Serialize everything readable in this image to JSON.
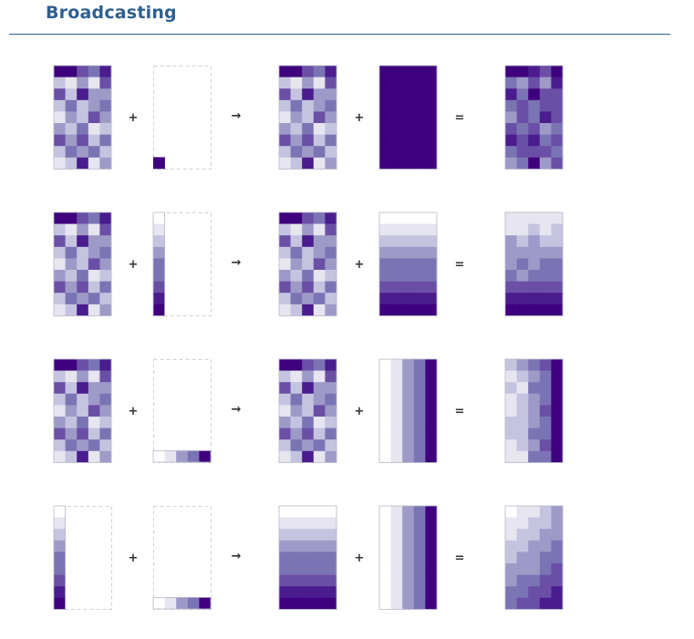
{
  "header": {
    "title": "Broadcasting"
  },
  "palette": [
    "#ffffff",
    "#e6e5f0",
    "#c5c4e0",
    "#9e9ac8",
    "#7b74b4",
    "#6a4fa6",
    "#4a1c8e",
    "#3f007d"
  ],
  "operators": {
    "plus": "+",
    "arrow": "→",
    "equals": "="
  },
  "rows": [
    {
      "a": {
        "shape": "matrix",
        "cells": [
          [
            7,
            7,
            5,
            4,
            6
          ],
          [
            2,
            1,
            3,
            1,
            5
          ],
          [
            5,
            2,
            6,
            3,
            3
          ],
          [
            2,
            4,
            2,
            3,
            4
          ],
          [
            1,
            3,
            2,
            5,
            3
          ],
          [
            3,
            2,
            4,
            1,
            2
          ],
          [
            5,
            3,
            5,
            2,
            4
          ],
          [
            2,
            4,
            3,
            4,
            2
          ],
          [
            1,
            2,
            6,
            1,
            3
          ]
        ]
      },
      "b": {
        "shape": "scalar",
        "cells": [
          [
            7
          ]
        ]
      },
      "ax": {
        "shape": "matrix",
        "cells": [
          [
            7,
            7,
            5,
            4,
            6
          ],
          [
            2,
            1,
            3,
            1,
            5
          ],
          [
            5,
            2,
            6,
            3,
            3
          ],
          [
            2,
            4,
            2,
            3,
            4
          ],
          [
            1,
            3,
            2,
            5,
            3
          ],
          [
            3,
            2,
            4,
            1,
            2
          ],
          [
            5,
            3,
            5,
            2,
            4
          ],
          [
            2,
            4,
            3,
            4,
            2
          ],
          [
            1,
            2,
            6,
            1,
            3
          ]
        ]
      },
      "bx": {
        "shape": "matrix",
        "cells": [
          [
            7,
            7,
            7,
            7,
            7
          ],
          [
            7,
            7,
            7,
            7,
            7
          ],
          [
            7,
            7,
            7,
            7,
            7
          ],
          [
            7,
            7,
            7,
            7,
            7
          ],
          [
            7,
            7,
            7,
            7,
            7
          ],
          [
            7,
            7,
            7,
            7,
            7
          ],
          [
            7,
            7,
            7,
            7,
            7
          ],
          [
            7,
            7,
            7,
            7,
            7
          ],
          [
            7,
            7,
            7,
            7,
            7
          ]
        ]
      },
      "r": {
        "shape": "matrix",
        "cells": [
          [
            7,
            7,
            6,
            5,
            7
          ],
          [
            4,
            3,
            5,
            3,
            6
          ],
          [
            6,
            4,
            7,
            5,
            5
          ],
          [
            4,
            5,
            4,
            5,
            5
          ],
          [
            3,
            5,
            4,
            6,
            5
          ],
          [
            5,
            4,
            5,
            3,
            4
          ],
          [
            6,
            5,
            6,
            4,
            5
          ],
          [
            4,
            5,
            5,
            5,
            4
          ],
          [
            3,
            4,
            7,
            3,
            5
          ]
        ]
      }
    },
    {
      "a": {
        "shape": "matrix",
        "cells": [
          [
            7,
            7,
            5,
            4,
            6
          ],
          [
            2,
            1,
            3,
            1,
            5
          ],
          [
            5,
            2,
            6,
            3,
            3
          ],
          [
            2,
            4,
            2,
            3,
            4
          ],
          [
            1,
            3,
            2,
            5,
            3
          ],
          [
            3,
            2,
            4,
            1,
            2
          ],
          [
            5,
            3,
            5,
            2,
            4
          ],
          [
            2,
            4,
            3,
            4,
            2
          ],
          [
            1,
            2,
            6,
            1,
            3
          ]
        ]
      },
      "b": {
        "shape": "column",
        "cells": [
          [
            0
          ],
          [
            1
          ],
          [
            2
          ],
          [
            3
          ],
          [
            4
          ],
          [
            4
          ],
          [
            5
          ],
          [
            6
          ],
          [
            7
          ]
        ]
      },
      "ax": {
        "shape": "matrix",
        "cells": [
          [
            7,
            7,
            5,
            4,
            6
          ],
          [
            2,
            1,
            3,
            1,
            5
          ],
          [
            5,
            2,
            6,
            3,
            3
          ],
          [
            2,
            4,
            2,
            3,
            4
          ],
          [
            1,
            3,
            2,
            5,
            3
          ],
          [
            3,
            2,
            4,
            1,
            2
          ],
          [
            5,
            3,
            5,
            2,
            4
          ],
          [
            2,
            4,
            3,
            4,
            2
          ],
          [
            1,
            2,
            6,
            1,
            3
          ]
        ]
      },
      "bx": {
        "shape": "matrix",
        "cells": [
          [
            0,
            0,
            0,
            0,
            0
          ],
          [
            1,
            1,
            1,
            1,
            1
          ],
          [
            2,
            2,
            2,
            2,
            2
          ],
          [
            3,
            3,
            3,
            3,
            3
          ],
          [
            4,
            4,
            4,
            4,
            4
          ],
          [
            4,
            4,
            4,
            4,
            4
          ],
          [
            5,
            5,
            5,
            5,
            5
          ],
          [
            6,
            6,
            6,
            6,
            6
          ],
          [
            7,
            7,
            7,
            7,
            7
          ]
        ]
      },
      "r": {
        "shape": "matrix",
        "cells": [
          [
            1,
            1,
            1,
            1,
            1
          ],
          [
            1,
            1,
            2,
            1,
            2
          ],
          [
            3,
            2,
            3,
            2,
            2
          ],
          [
            3,
            3,
            3,
            3,
            3
          ],
          [
            3,
            4,
            3,
            4,
            4
          ],
          [
            4,
            3,
            4,
            4,
            4
          ],
          [
            5,
            5,
            5,
            5,
            5
          ],
          [
            6,
            6,
            6,
            6,
            6
          ],
          [
            7,
            7,
            7,
            7,
            7
          ]
        ]
      }
    },
    {
      "a": {
        "shape": "matrix",
        "cells": [
          [
            7,
            7,
            5,
            4,
            6
          ],
          [
            2,
            1,
            3,
            1,
            5
          ],
          [
            5,
            2,
            6,
            3,
            3
          ],
          [
            2,
            4,
            2,
            3,
            4
          ],
          [
            1,
            3,
            2,
            5,
            3
          ],
          [
            3,
            2,
            4,
            1,
            2
          ],
          [
            5,
            3,
            5,
            2,
            4
          ],
          [
            2,
            4,
            3,
            4,
            2
          ],
          [
            1,
            2,
            6,
            1,
            3
          ]
        ]
      },
      "b": {
        "shape": "row",
        "cells": [
          [
            0,
            1,
            3,
            4,
            7
          ]
        ]
      },
      "ax": {
        "shape": "matrix",
        "cells": [
          [
            7,
            7,
            5,
            4,
            6
          ],
          [
            2,
            1,
            3,
            1,
            5
          ],
          [
            5,
            2,
            6,
            3,
            3
          ],
          [
            2,
            4,
            2,
            3,
            4
          ],
          [
            1,
            3,
            2,
            5,
            3
          ],
          [
            3,
            2,
            4,
            1,
            2
          ],
          [
            5,
            3,
            5,
            2,
            4
          ],
          [
            2,
            4,
            3,
            4,
            2
          ],
          [
            1,
            2,
            6,
            1,
            3
          ]
        ]
      },
      "bx": {
        "shape": "matrix",
        "cells": [
          [
            0,
            1,
            3,
            4,
            7
          ],
          [
            0,
            1,
            3,
            4,
            7
          ],
          [
            0,
            1,
            3,
            4,
            7
          ],
          [
            0,
            1,
            3,
            4,
            7
          ],
          [
            0,
            1,
            3,
            4,
            7
          ],
          [
            0,
            1,
            3,
            4,
            7
          ],
          [
            0,
            1,
            3,
            4,
            7
          ],
          [
            0,
            1,
            3,
            4,
            7
          ],
          [
            0,
            1,
            3,
            4,
            7
          ]
        ]
      },
      "r": {
        "shape": "matrix",
        "cells": [
          [
            2,
            3,
            4,
            5,
            7
          ],
          [
            1,
            2,
            3,
            4,
            7
          ],
          [
            2,
            1,
            4,
            4,
            7
          ],
          [
            1,
            2,
            3,
            4,
            7
          ],
          [
            1,
            2,
            3,
            5,
            7
          ],
          [
            2,
            2,
            3,
            4,
            7
          ],
          [
            2,
            2,
            4,
            4,
            7
          ],
          [
            1,
            2,
            3,
            5,
            7
          ],
          [
            1,
            1,
            4,
            4,
            7
          ]
        ]
      }
    },
    {
      "a": {
        "shape": "column",
        "cells": [
          [
            0
          ],
          [
            1
          ],
          [
            2
          ],
          [
            3
          ],
          [
            4
          ],
          [
            4
          ],
          [
            5
          ],
          [
            6
          ],
          [
            7
          ]
        ]
      },
      "b": {
        "shape": "row",
        "cells": [
          [
            0,
            1,
            3,
            4,
            7
          ]
        ]
      },
      "ax": {
        "shape": "matrix",
        "cells": [
          [
            0,
            0,
            0,
            0,
            0
          ],
          [
            1,
            1,
            1,
            1,
            1
          ],
          [
            2,
            2,
            2,
            2,
            2
          ],
          [
            3,
            3,
            3,
            3,
            3
          ],
          [
            4,
            4,
            4,
            4,
            4
          ],
          [
            4,
            4,
            4,
            4,
            4
          ],
          [
            5,
            5,
            5,
            5,
            5
          ],
          [
            6,
            6,
            6,
            6,
            6
          ],
          [
            7,
            7,
            7,
            7,
            7
          ]
        ]
      },
      "bx": {
        "shape": "matrix",
        "cells": [
          [
            0,
            1,
            3,
            4,
            7
          ],
          [
            0,
            1,
            3,
            4,
            7
          ],
          [
            0,
            1,
            3,
            4,
            7
          ],
          [
            0,
            1,
            3,
            4,
            7
          ],
          [
            0,
            1,
            3,
            4,
            7
          ],
          [
            0,
            1,
            3,
            4,
            7
          ],
          [
            0,
            1,
            3,
            4,
            7
          ],
          [
            0,
            1,
            3,
            4,
            7
          ],
          [
            0,
            1,
            3,
            4,
            7
          ]
        ]
      },
      "r": {
        "shape": "matrix",
        "cells": [
          [
            0,
            1,
            1,
            2,
            3
          ],
          [
            1,
            1,
            2,
            2,
            3
          ],
          [
            1,
            2,
            2,
            3,
            3
          ],
          [
            2,
            2,
            3,
            3,
            4
          ],
          [
            2,
            3,
            3,
            4,
            4
          ],
          [
            3,
            3,
            3,
            4,
            5
          ],
          [
            3,
            4,
            4,
            5,
            5
          ],
          [
            4,
            4,
            5,
            5,
            6
          ],
          [
            4,
            5,
            5,
            6,
            6
          ]
        ]
      }
    }
  ]
}
